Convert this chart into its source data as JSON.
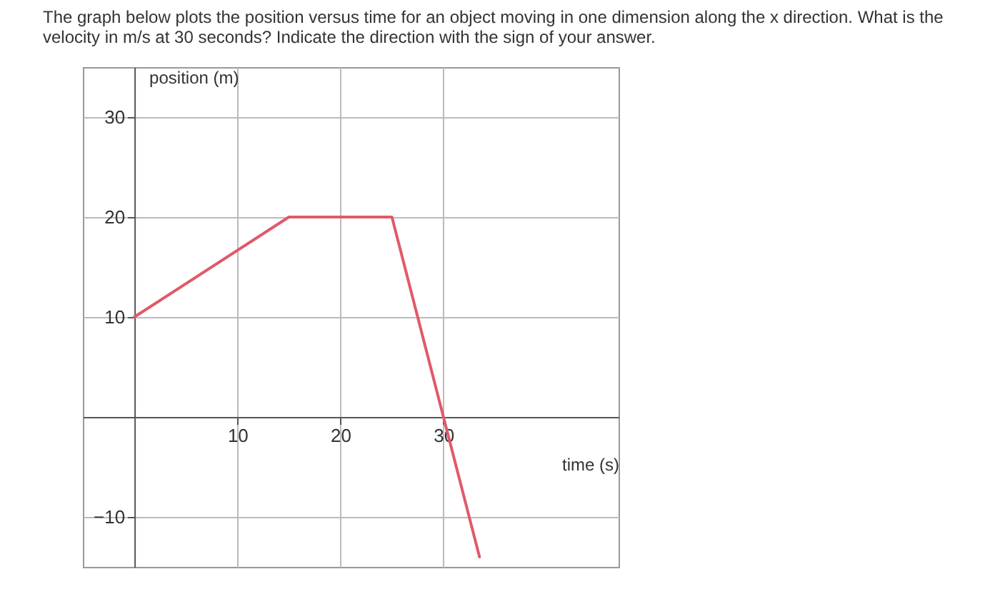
{
  "chart_data": {
    "type": "line",
    "title": "The graph below plots the position versus time for an object moving in one dimension along the x direction. What is the velocity in m/s at 30 seconds? Indicate the direction with the sign of your answer.",
    "xlabel": "time (s)",
    "ylabel": "position (m)",
    "x": [
      0,
      15,
      25,
      33.5
    ],
    "series": [
      {
        "color": "#e05a6a",
        "values": [
          10,
          20,
          20,
          -14
        ]
      }
    ],
    "xlim": [
      -5,
      47
    ],
    "ylim": [
      -15,
      35
    ],
    "xticks": [
      10,
      20,
      30
    ],
    "yticks": [
      -10,
      10,
      20,
      30
    ],
    "grid": true,
    "marker": "none",
    "line_style": "solid"
  }
}
